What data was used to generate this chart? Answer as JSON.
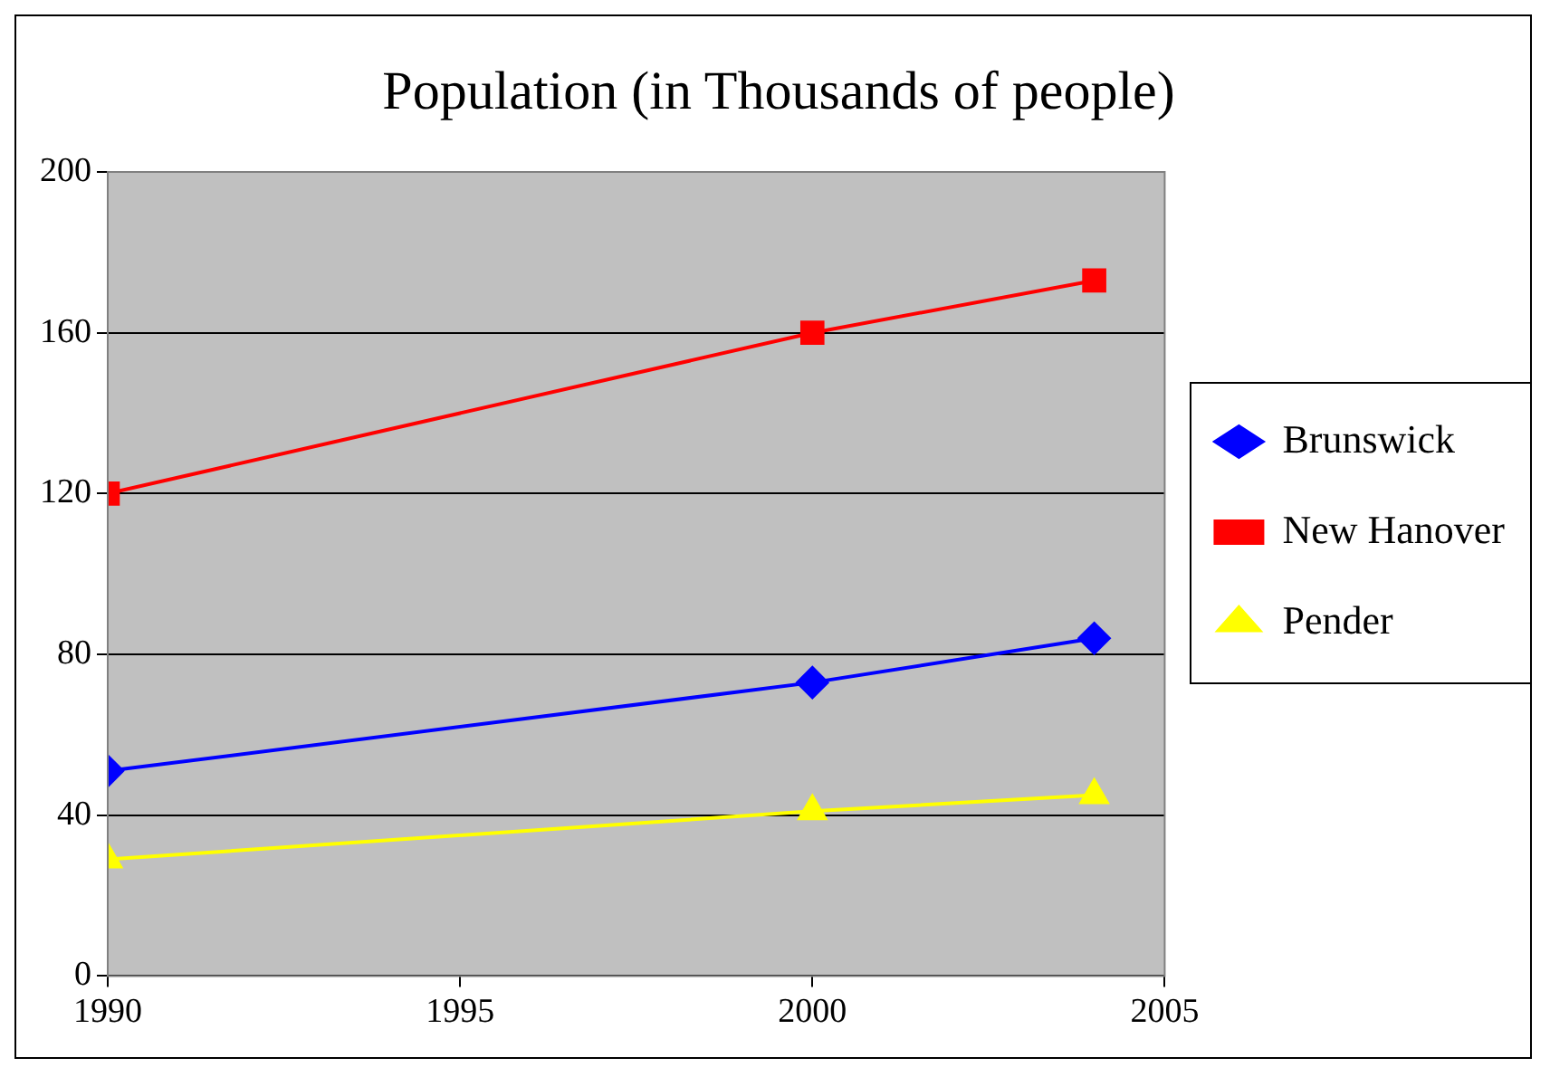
{
  "chart_data": {
    "type": "line",
    "title": "Population (in Thousands of people)",
    "x": [
      1990,
      2000,
      2004
    ],
    "series": [
      {
        "name": "Brunswick",
        "color": "#0000ff",
        "marker": "diamond",
        "values": [
          51,
          73,
          84
        ]
      },
      {
        "name": "New Hanover",
        "color": "#ff0000",
        "marker": "square",
        "values": [
          120,
          160,
          173
        ]
      },
      {
        "name": "Pender",
        "color": "#ffff00",
        "marker": "triangle",
        "values": [
          29,
          41,
          45
        ]
      }
    ],
    "xlim": [
      1990,
      2005
    ],
    "xticks": [
      1990,
      1995,
      2000,
      2005
    ],
    "ylim": [
      0,
      200
    ],
    "yticks": [
      0,
      40,
      80,
      120,
      160,
      200
    ],
    "grid": "y",
    "legend": "right"
  }
}
